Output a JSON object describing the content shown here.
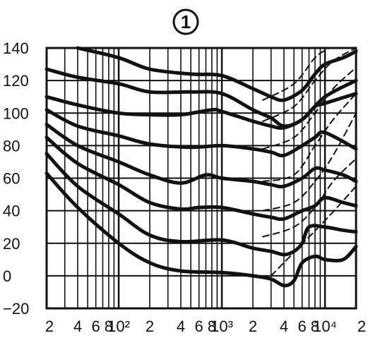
{
  "chart_data": {
    "type": "line",
    "marker_label": "1",
    "x_scale": "log",
    "xlim": [
      20,
      20000
    ],
    "ylim": [
      -20,
      140
    ],
    "y_ticks": [
      "140",
      "120",
      "100",
      "80",
      "60",
      "40",
      "20",
      "0",
      "−20"
    ],
    "y_tick_values": [
      140,
      120,
      100,
      80,
      60,
      40,
      20,
      0,
      -20
    ],
    "x_ticks": [
      {
        "label": "2",
        "value": 20
      },
      {
        "label": "4",
        "value": 40
      },
      {
        "label": "6",
        "value": 60
      },
      {
        "label": "8",
        "value": 80
      },
      {
        "label": "10²",
        "value": 100
      },
      {
        "label": "2",
        "value": 200
      },
      {
        "label": "4",
        "value": 400
      },
      {
        "label": "6",
        "value": 600
      },
      {
        "label": "8",
        "value": 800
      },
      {
        "label": "10³",
        "value": 1000
      },
      {
        "label": "2",
        "value": 2000
      },
      {
        "label": "4",
        "value": 4000
      },
      {
        "label": "6",
        "value": 6000
      },
      {
        "label": "8",
        "value": 8000
      },
      {
        "label": "10⁴",
        "value": 10000
      },
      {
        "label": "2",
        "value": 20000
      }
    ],
    "grid_x": [
      30,
      40,
      50,
      60,
      70,
      80,
      90,
      100,
      200,
      300,
      400,
      500,
      600,
      700,
      800,
      900,
      1000,
      2000,
      3000,
      4000,
      5000,
      6000,
      7000,
      8000,
      9000,
      10000
    ],
    "grid_y": [
      -20,
      0,
      20,
      40,
      60,
      80,
      100,
      120,
      140
    ],
    "series": [
      {
        "style": "solid",
        "points": [
          [
            20,
            63
          ],
          [
            40,
            42
          ],
          [
            100,
            20
          ],
          [
            200,
            8
          ],
          [
            400,
            3
          ],
          [
            1000,
            2
          ],
          [
            2000,
            0
          ],
          [
            3000,
            -2
          ],
          [
            4000,
            -6
          ],
          [
            5000,
            -3
          ],
          [
            6000,
            8
          ],
          [
            8000,
            12
          ],
          [
            10000,
            10
          ],
          [
            15000,
            10
          ],
          [
            20000,
            18
          ]
        ]
      },
      {
        "style": "solid",
        "points": [
          [
            20,
            75
          ],
          [
            40,
            55
          ],
          [
            100,
            38
          ],
          [
            200,
            25
          ],
          [
            400,
            21
          ],
          [
            1000,
            22
          ],
          [
            2000,
            17
          ],
          [
            3000,
            15
          ],
          [
            4000,
            13
          ],
          [
            5000,
            15
          ],
          [
            6000,
            20
          ],
          [
            7000,
            30
          ],
          [
            10000,
            30
          ],
          [
            15000,
            28
          ],
          [
            20000,
            27
          ]
        ]
      },
      {
        "style": "solid",
        "points": [
          [
            20,
            85
          ],
          [
            40,
            69
          ],
          [
            100,
            56
          ],
          [
            200,
            45
          ],
          [
            400,
            41
          ],
          [
            600,
            42
          ],
          [
            1000,
            42
          ],
          [
            2000,
            38
          ],
          [
            3000,
            36
          ],
          [
            4000,
            35
          ],
          [
            6000,
            40
          ],
          [
            8000,
            43
          ],
          [
            10000,
            48
          ],
          [
            15000,
            45
          ],
          [
            20000,
            43
          ]
        ]
      },
      {
        "style": "solid",
        "points": [
          [
            20,
            93
          ],
          [
            40,
            80
          ],
          [
            100,
            70
          ],
          [
            200,
            62
          ],
          [
            400,
            57
          ],
          [
            700,
            62
          ],
          [
            1000,
            60
          ],
          [
            2000,
            58
          ],
          [
            3000,
            56
          ],
          [
            4000,
            55
          ],
          [
            6000,
            60
          ],
          [
            8000,
            66
          ],
          [
            10000,
            65
          ],
          [
            15000,
            62
          ],
          [
            20000,
            58
          ]
        ]
      },
      {
        "style": "solid",
        "points": [
          [
            20,
            102
          ],
          [
            40,
            92
          ],
          [
            100,
            86
          ],
          [
            200,
            81
          ],
          [
            500,
            79
          ],
          [
            1000,
            80
          ],
          [
            2000,
            78
          ],
          [
            3000,
            76
          ],
          [
            4000,
            74
          ],
          [
            6000,
            80
          ],
          [
            8000,
            85
          ],
          [
            10000,
            88
          ],
          [
            20000,
            78
          ]
        ]
      },
      {
        "style": "solid",
        "points": [
          [
            20,
            110
          ],
          [
            40,
            105
          ],
          [
            100,
            100
          ],
          [
            200,
            99
          ],
          [
            400,
            99
          ],
          [
            800,
            102
          ],
          [
            1000,
            101
          ],
          [
            2000,
            95
          ],
          [
            3000,
            92
          ],
          [
            4000,
            91
          ],
          [
            6000,
            96
          ],
          [
            8000,
            104
          ],
          [
            10000,
            106
          ],
          [
            20000,
            112
          ]
        ]
      },
      {
        "style": "solid",
        "points": [
          [
            20,
            127
          ],
          [
            40,
            122
          ],
          [
            100,
            118
          ],
          [
            200,
            113
          ],
          [
            500,
            113
          ],
          [
            1000,
            112
          ],
          [
            2000,
            102
          ],
          [
            3000,
            97
          ],
          [
            4000,
            92
          ],
          [
            6000,
            96
          ],
          [
            10000,
            110
          ],
          [
            20000,
            120
          ]
        ]
      },
      {
        "style": "solid",
        "points": [
          [
            40,
            140
          ],
          [
            100,
            134
          ],
          [
            200,
            127
          ],
          [
            500,
            124
          ],
          [
            1000,
            123
          ],
          [
            2000,
            115
          ],
          [
            3000,
            110
          ],
          [
            4000,
            108
          ],
          [
            6000,
            114
          ],
          [
            8000,
            124
          ],
          [
            10000,
            130
          ],
          [
            15000,
            134
          ],
          [
            20000,
            138
          ]
        ]
      },
      {
        "style": "dashed",
        "points": [
          [
            3000,
            0
          ],
          [
            10000,
            34
          ],
          [
            20000,
            55
          ]
        ]
      },
      {
        "style": "dashed",
        "points": [
          [
            2500,
            24
          ],
          [
            5000,
            30
          ],
          [
            8000,
            42
          ],
          [
            12000,
            58
          ],
          [
            20000,
            72
          ]
        ]
      },
      {
        "style": "dashed",
        "points": [
          [
            2500,
            40
          ],
          [
            5000,
            45
          ],
          [
            8000,
            58
          ],
          [
            12000,
            74
          ],
          [
            20000,
            100
          ]
        ]
      },
      {
        "style": "dashed",
        "points": [
          [
            2500,
            58
          ],
          [
            5000,
            62
          ],
          [
            8000,
            80
          ],
          [
            12000,
            96
          ],
          [
            20000,
            112
          ]
        ]
      },
      {
        "style": "dashed",
        "points": [
          [
            2500,
            78
          ],
          [
            5000,
            85
          ],
          [
            8000,
            100
          ],
          [
            12000,
            115
          ],
          [
            20000,
            128
          ]
        ]
      },
      {
        "style": "dashed",
        "points": [
          [
            2500,
            95
          ],
          [
            5000,
            104
          ],
          [
            8000,
            120
          ],
          [
            12000,
            132
          ],
          [
            20000,
            140
          ]
        ]
      },
      {
        "style": "dashed",
        "points": [
          [
            2500,
            108
          ],
          [
            5000,
            118
          ],
          [
            8000,
            134
          ],
          [
            11000,
            140
          ]
        ]
      }
    ]
  }
}
